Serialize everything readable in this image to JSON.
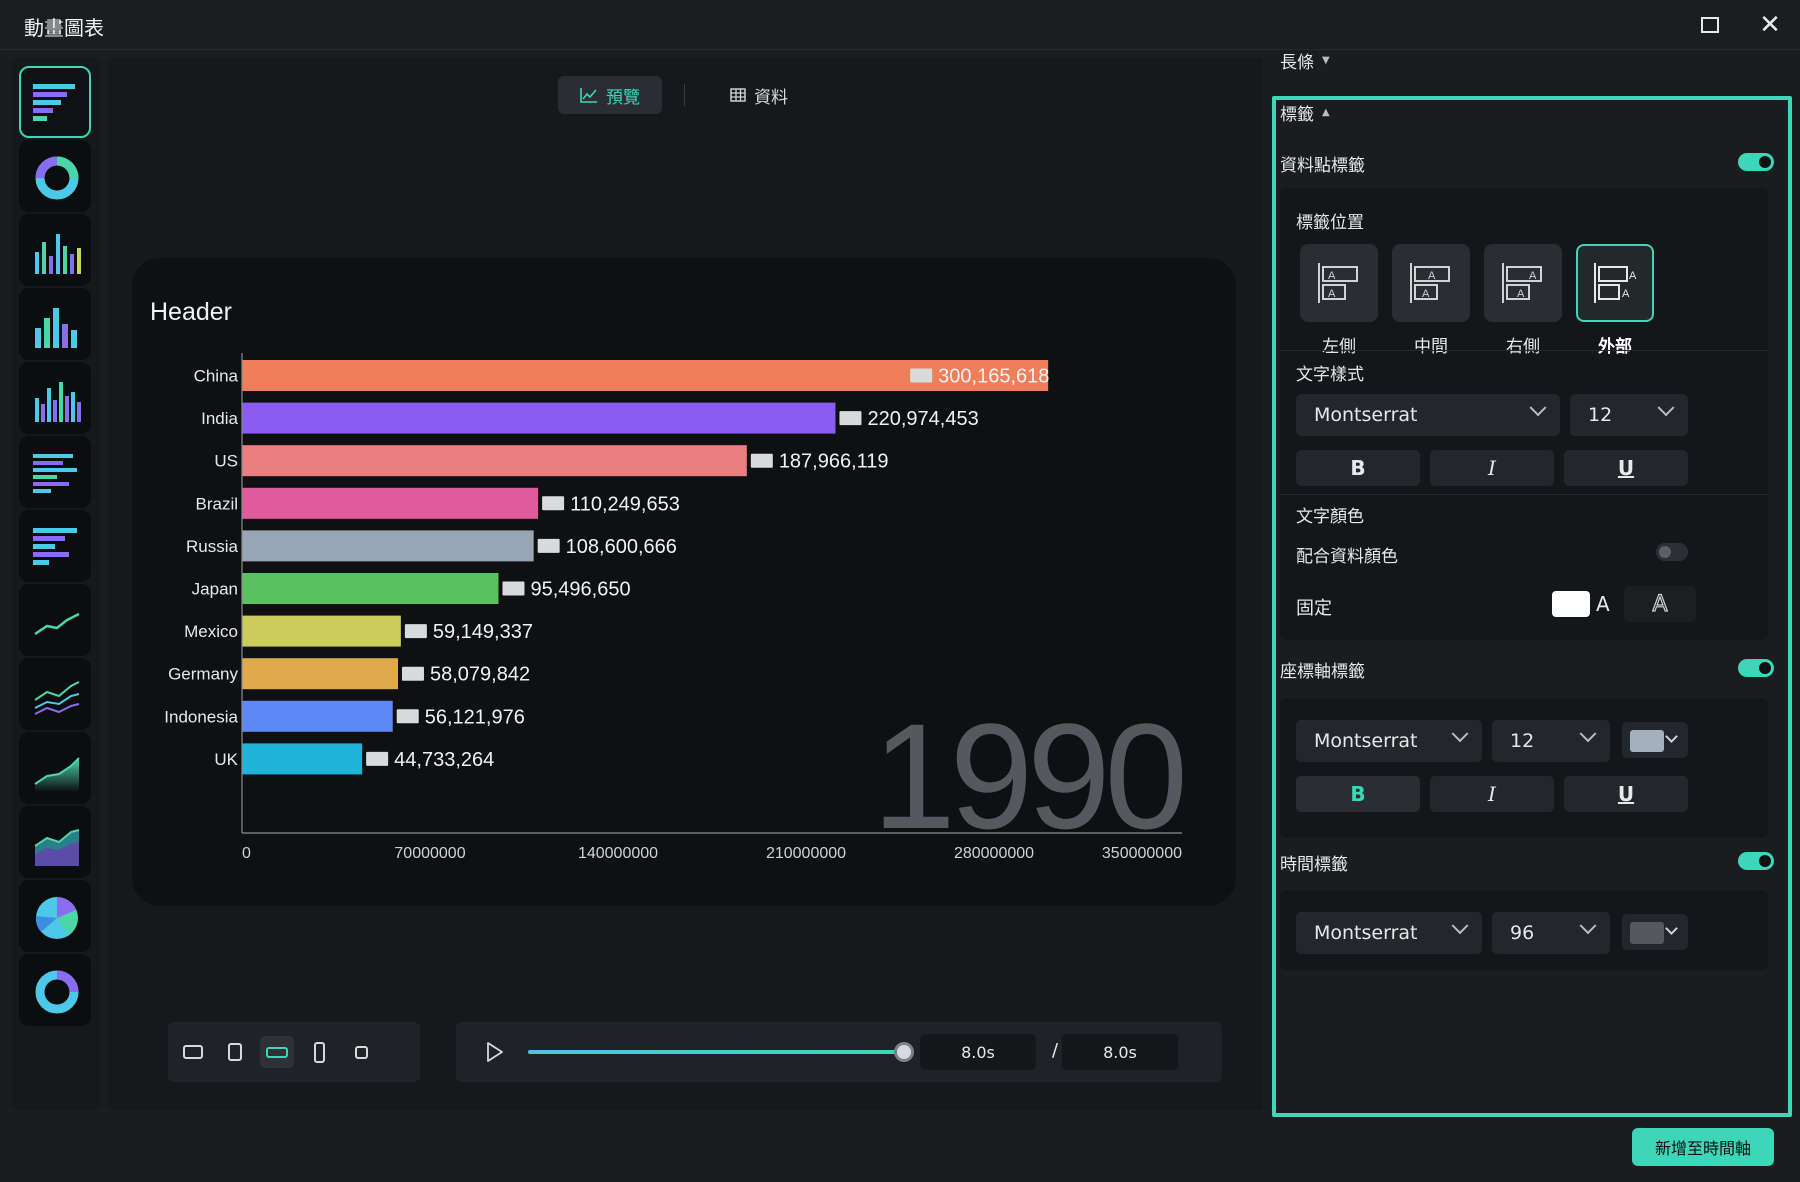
{
  "window": {
    "title": "動畫圖表"
  },
  "sidebar": {
    "chart_icons": [
      "bar-race-icon",
      "donut-icon",
      "column-icon",
      "column-icon-2",
      "column-icon-3",
      "bar-icon",
      "bar-icon-2",
      "line-icon",
      "multi-line-icon",
      "area-icon",
      "stacked-area-icon",
      "pie-icon",
      "donut-icon-2"
    ]
  },
  "view_toggle": {
    "preview_label": "預覽",
    "data_label": "資料"
  },
  "chart_data": {
    "type": "bar",
    "title": "Header",
    "categories": [
      "China",
      "India",
      "US",
      "Brazil",
      "Russia",
      "Japan",
      "Mexico",
      "Germany",
      "Indonesia",
      "UK"
    ],
    "values": [
      300165618,
      220974453,
      187966119,
      110249653,
      108600666,
      95496650,
      59149337,
      58079842,
      56121976,
      44733264
    ],
    "value_labels": [
      "300,165,618",
      "220,974,453",
      "187,966,119",
      "110,249,653",
      "108,600,666",
      "95,496,650",
      "59,149,337",
      "58,079,842",
      "56,121,976",
      "44,733,264"
    ],
    "colors": [
      "#ef7f5a",
      "#8a5cf0",
      "#eb7e80",
      "#e05a9c",
      "#98a5b5",
      "#5bc060",
      "#cccc5c",
      "#e0aa4c",
      "#5c88f8",
      "#1fb4d8"
    ],
    "x_ticks": [
      "0",
      "70000000",
      "140000000",
      "210000000",
      "280000000",
      "350000000"
    ],
    "xlim": [
      0,
      350000000
    ],
    "time_label": "1990",
    "grid": false,
    "legend": "none"
  },
  "player": {
    "current": "8.0s",
    "separator": "/",
    "total": "8.0s",
    "progress": 1.0
  },
  "settings": {
    "bars_section": "長條",
    "labels_section": "標籤",
    "data_point_labels": {
      "label": "資料點標籤",
      "on": true
    },
    "label_position": {
      "title": "標籤位置",
      "options": [
        "左側",
        "中間",
        "右側",
        "外部"
      ],
      "selected": "外部"
    },
    "text_style": {
      "title": "文字樣式",
      "font": "Montserrat",
      "size": "12",
      "bold": "B",
      "italic": "I",
      "underline": "U"
    },
    "text_color": {
      "title": "文字顏色",
      "match_label": "配合資料顏色",
      "match_on": false,
      "fixed_label": "固定",
      "fixed_color": "#ffffff",
      "a_glyph": "A"
    },
    "axis_labels": {
      "label": "座標軸標籤",
      "on": true,
      "font": "Montserrat",
      "size": "12",
      "color": "#a5b0bd",
      "bold": "B",
      "italic": "I",
      "underline": "U"
    },
    "time_label": {
      "label": "時間標籤",
      "on": true,
      "font": "Montserrat",
      "size": "96",
      "color": "#55585c"
    }
  },
  "add_button": "新增至時間軸"
}
